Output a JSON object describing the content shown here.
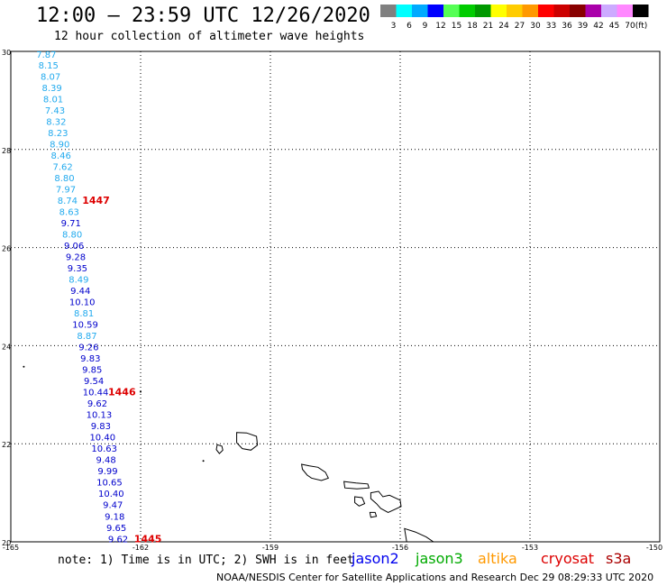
{
  "header": {
    "title": "12:00 – 23:59 UTC 12/26/2020",
    "subtitle": "12 hour collection of altimeter wave heights"
  },
  "legend": {
    "colors": [
      "#808080",
      "#00ffff",
      "#00aaff",
      "#0000ff",
      "#55ff55",
      "#00cc00",
      "#009900",
      "#ffff00",
      "#ffcc00",
      "#ff9900",
      "#ff0000",
      "#cc0000",
      "#880000",
      "#aa00aa",
      "#ccaaff",
      "#ff88ff",
      "#000000"
    ],
    "labels": [
      "3",
      "6",
      "9",
      "12",
      "15",
      "18",
      "21",
      "24",
      "27",
      "30",
      "33",
      "36",
      "39",
      "42",
      "45",
      "70",
      "(ft)"
    ]
  },
  "axes": {
    "lat_labels": [
      "30",
      "28",
      "26",
      "24",
      "22",
      "20"
    ],
    "lon_labels": [
      "-165",
      "-162",
      "-159",
      "-156",
      "-153",
      "-150"
    ]
  },
  "map": {
    "lon_range": [
      -165,
      -150
    ],
    "lat_range": [
      20,
      30
    ],
    "grid": "dotted"
  },
  "track": {
    "points": [
      {
        "lon": -164.18,
        "lat": 29.93,
        "swh": "7.87",
        "color": "#22aaee"
      },
      {
        "lon": -164.13,
        "lat": 29.71,
        "swh": "8.15",
        "color": "#22aaee"
      },
      {
        "lon": -164.08,
        "lat": 29.48,
        "swh": "8.07",
        "color": "#22aaee"
      },
      {
        "lon": -164.05,
        "lat": 29.25,
        "swh": "8.39",
        "color": "#22aaee"
      },
      {
        "lon": -164.02,
        "lat": 29.02,
        "swh": "8.01",
        "color": "#22aaee"
      },
      {
        "lon": -163.98,
        "lat": 28.79,
        "swh": "7.43",
        "color": "#22aaee"
      },
      {
        "lon": -163.95,
        "lat": 28.56,
        "swh": "8.32",
        "color": "#22aaee"
      },
      {
        "lon": -163.91,
        "lat": 28.33,
        "swh": "8.23",
        "color": "#22aaee"
      },
      {
        "lon": -163.87,
        "lat": 28.1,
        "swh": "8.90",
        "color": "#22aaee"
      },
      {
        "lon": -163.84,
        "lat": 27.87,
        "swh": "8.46",
        "color": "#22aaee"
      },
      {
        "lon": -163.8,
        "lat": 27.64,
        "swh": "7.62",
        "color": "#22aaee"
      },
      {
        "lon": -163.76,
        "lat": 27.41,
        "swh": "8.80",
        "color": "#22aaee"
      },
      {
        "lon": -163.73,
        "lat": 27.18,
        "swh": "7.97",
        "color": "#22aaee"
      },
      {
        "lon": -163.69,
        "lat": 26.95,
        "swh": "8.74",
        "color": "#22aaee"
      },
      {
        "lon": -163.65,
        "lat": 26.72,
        "swh": "8.63",
        "color": "#22aaee"
      },
      {
        "lon": -163.61,
        "lat": 26.49,
        "swh": "9.71",
        "color": "#0000cc"
      },
      {
        "lon": -163.58,
        "lat": 26.26,
        "swh": "8.80",
        "color": "#22aaee"
      },
      {
        "lon": -163.54,
        "lat": 26.03,
        "swh": "9.06",
        "color": "#0000cc"
      },
      {
        "lon": -163.5,
        "lat": 25.8,
        "swh": "9.28",
        "color": "#0000cc"
      },
      {
        "lon": -163.46,
        "lat": 25.57,
        "swh": "9.35",
        "color": "#0000cc"
      },
      {
        "lon": -163.43,
        "lat": 25.34,
        "swh": "8.49",
        "color": "#22aaee"
      },
      {
        "lon": -163.39,
        "lat": 25.11,
        "swh": "9.44",
        "color": "#0000cc"
      },
      {
        "lon": -163.35,
        "lat": 24.88,
        "swh": "10.10",
        "color": "#0000cc"
      },
      {
        "lon": -163.31,
        "lat": 24.65,
        "swh": "8.81",
        "color": "#22aaee"
      },
      {
        "lon": -163.28,
        "lat": 24.42,
        "swh": "10.59",
        "color": "#0000cc"
      },
      {
        "lon": -163.24,
        "lat": 24.19,
        "swh": "8.87",
        "color": "#22aaee"
      },
      {
        "lon": -163.2,
        "lat": 23.96,
        "swh": "9.26",
        "color": "#0000cc"
      },
      {
        "lon": -163.16,
        "lat": 23.73,
        "swh": "9.83",
        "color": "#0000cc"
      },
      {
        "lon": -163.12,
        "lat": 23.5,
        "swh": "9.85",
        "color": "#0000cc"
      },
      {
        "lon": -163.08,
        "lat": 23.27,
        "swh": "9.54",
        "color": "#0000cc"
      },
      {
        "lon": -163.04,
        "lat": 23.04,
        "swh": "10.44",
        "color": "#0000cc"
      },
      {
        "lon": -163.0,
        "lat": 22.81,
        "swh": "9.62",
        "color": "#0000cc"
      },
      {
        "lon": -162.96,
        "lat": 22.58,
        "swh": "10.13",
        "color": "#0000cc"
      },
      {
        "lon": -162.92,
        "lat": 22.35,
        "swh": "9.83",
        "color": "#0000cc"
      },
      {
        "lon": -162.88,
        "lat": 22.12,
        "swh": "10.40",
        "color": "#0000cc"
      },
      {
        "lon": -162.84,
        "lat": 21.89,
        "swh": "10.63",
        "color": "#0000cc"
      },
      {
        "lon": -162.8,
        "lat": 21.66,
        "swh": "9.48",
        "color": "#0000cc"
      },
      {
        "lon": -162.76,
        "lat": 21.43,
        "swh": "9.99",
        "color": "#0000cc"
      },
      {
        "lon": -162.72,
        "lat": 21.2,
        "swh": "10.65",
        "color": "#0000cc"
      },
      {
        "lon": -162.68,
        "lat": 20.97,
        "swh": "10.40",
        "color": "#0000cc"
      },
      {
        "lon": -162.64,
        "lat": 20.74,
        "swh": "9.47",
        "color": "#0000cc"
      },
      {
        "lon": -162.6,
        "lat": 20.51,
        "swh": "9.18",
        "color": "#0000cc"
      },
      {
        "lon": -162.56,
        "lat": 20.28,
        "swh": "9.65",
        "color": "#0000cc"
      },
      {
        "lon": -162.52,
        "lat": 20.05,
        "swh": "9.62",
        "color": "#0000cc"
      }
    ],
    "time_markers": [
      {
        "label": "1447",
        "lon": -163.35,
        "lat": 26.95
      },
      {
        "label": "1446",
        "lon": -162.75,
        "lat": 23.04
      },
      {
        "label": "1445",
        "lon": -162.15,
        "lat": 20.05
      }
    ],
    "marker_color": "#dd0000"
  },
  "footer": {
    "note": "note: 1) Time is in UTC; 2) SWH is in feet",
    "satellites": [
      {
        "name": "jason2",
        "color": "#0000ee"
      },
      {
        "name": "jason3",
        "color": "#00aa00"
      },
      {
        "name": "altika",
        "color": "#ff9900"
      },
      {
        "name": "cryosat",
        "color": "#dd0000"
      },
      {
        "name": "s3a",
        "color": "#aa0000"
      }
    ],
    "credit": "NOAA/NESDIS Center for Satellite Applications and Research    Dec 29 08:29:33 UTC 2020"
  }
}
